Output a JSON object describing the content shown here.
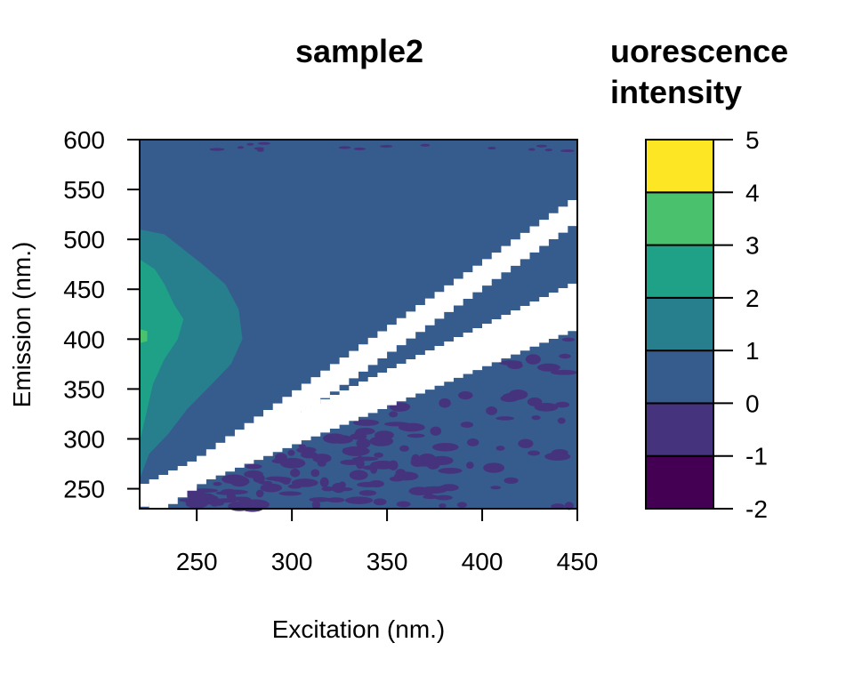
{
  "chart_data": {
    "type": "heatmap",
    "title": "sample2",
    "xlabel": "Excitation (nm.)",
    "ylabel": "Emission (nm.)",
    "xlim": [
      220,
      450
    ],
    "ylim": [
      230,
      600
    ],
    "x_ticks": [
      250,
      300,
      350,
      400,
      450
    ],
    "y_ticks": [
      250,
      300,
      350,
      400,
      450,
      500,
      550,
      600
    ],
    "colorbar": {
      "title": "uorescence intensity",
      "title_lines": [
        "uorescence",
        "intensity"
      ],
      "ticks": [
        5,
        4,
        3,
        2,
        1,
        0,
        -1,
        -2
      ],
      "levels": [
        {
          "from": -2,
          "to": -1,
          "color": "#440154"
        },
        {
          "from": -1,
          "to": 0,
          "color": "#46337E"
        },
        {
          "from": 0,
          "to": 1,
          "color": "#365C8D"
        },
        {
          "from": 1,
          "to": 2,
          "color": "#277F8E"
        },
        {
          "from": 2,
          "to": 3,
          "color": "#1FA187"
        },
        {
          "from": 3,
          "to": 4,
          "color": "#4AC16D"
        },
        {
          "from": 4,
          "to": 5,
          "color": "#FDE725"
        }
      ]
    },
    "regions": [
      {
        "level": "0 to 1",
        "description": "background across the excitation-emission plane"
      },
      {
        "level": "1 to 2",
        "polygon_data": [
          [
            220,
            510
          ],
          [
            233,
            505
          ],
          [
            243,
            490
          ],
          [
            253,
            475
          ],
          [
            265,
            455
          ],
          [
            272,
            430
          ],
          [
            274,
            400
          ],
          [
            268,
            375
          ],
          [
            258,
            355
          ],
          [
            245,
            330
          ],
          [
            235,
            305
          ],
          [
            225,
            285
          ],
          [
            220,
            260
          ]
        ]
      },
      {
        "level": "2 to 3",
        "polygon_data": [
          [
            220,
            480
          ],
          [
            228,
            470
          ],
          [
            233,
            455
          ],
          [
            238,
            435
          ],
          [
            243,
            420
          ],
          [
            240,
            400
          ],
          [
            233,
            380
          ],
          [
            227,
            355
          ],
          [
            224,
            330
          ],
          [
            221,
            305
          ],
          [
            220,
            295
          ]
        ]
      },
      {
        "level": "3 to 4",
        "polygon_data": [
          [
            220,
            410
          ],
          [
            224,
            408
          ],
          [
            224,
            398
          ],
          [
            220,
            396
          ]
        ]
      },
      {
        "level": "-1 to 0",
        "description": "speckled patches below the first-order scatter band (emission < excitation)"
      }
    ],
    "scatter_bands": [
      {
        "name": "first-order",
        "lower": [
          [
            220,
            232
          ],
          [
            450,
            412
          ]
        ],
        "upper": [
          [
            220,
            255
          ],
          [
            450,
            460
          ]
        ]
      },
      {
        "name": "second-order",
        "lower": [
          [
            245,
            248
          ],
          [
            450,
            520
          ]
        ],
        "upper": [
          [
            225,
            250
          ],
          [
            450,
            546
          ]
        ]
      }
    ]
  }
}
